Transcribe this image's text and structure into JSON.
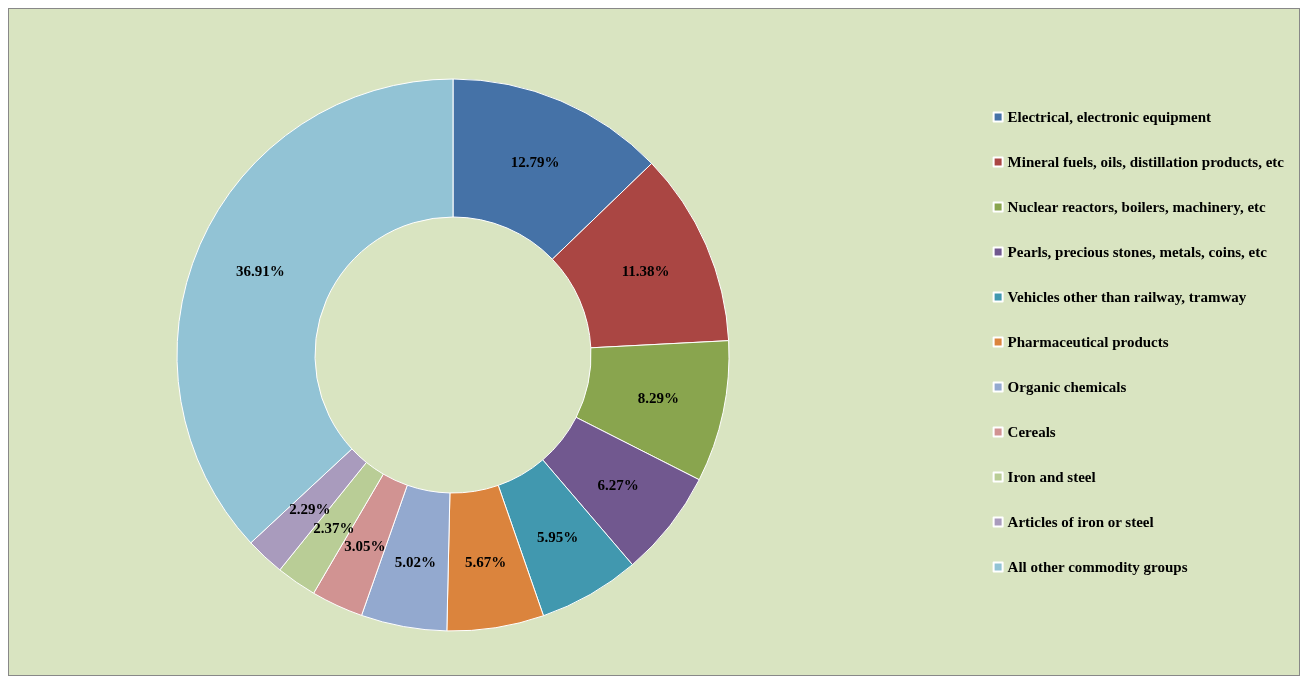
{
  "chart_data": {
    "type": "donut",
    "categories": [
      "Electrical, electronic equipment",
      "Mineral fuels, oils, distillation products, etc",
      "Nuclear reactors, boilers, machinery, etc",
      "Pearls, precious stones, metals, coins, etc",
      "Vehicles other than railway, tramway",
      "Pharmaceutical products",
      "Organic chemicals",
      "Cereals",
      "Iron and steel",
      "Articles of iron or steel",
      "All other commodity groups"
    ],
    "values": [
      12.79,
      11.38,
      8.29,
      6.27,
      5.95,
      5.67,
      5.02,
      3.05,
      2.37,
      2.29,
      36.91
    ],
    "value_labels": [
      "12.79%",
      "11.38%",
      "8.29%",
      "6.27%",
      "5.95%",
      "5.67%",
      "5.02%",
      "3.05%",
      "2.37%",
      "2.29%",
      "36.91%"
    ],
    "colors": [
      "#4572a7",
      "#aa4643",
      "#89a54e",
      "#71588f",
      "#4198af",
      "#db843d",
      "#93a9cf",
      "#d19392",
      "#b9cd96",
      "#a99bbd",
      "#92c3d5"
    ],
    "legend": "right"
  }
}
